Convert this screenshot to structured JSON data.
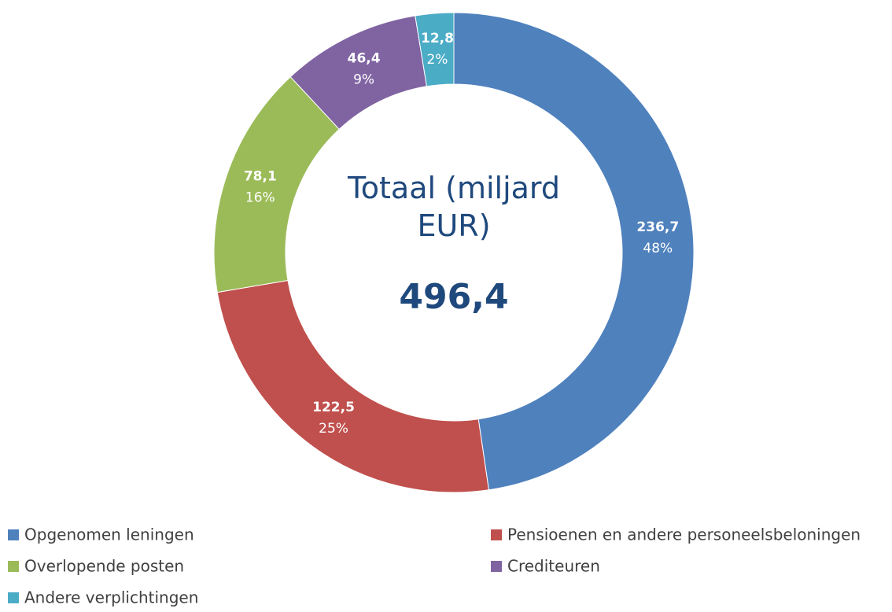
{
  "chart_data": {
    "type": "donut",
    "center_title": "Totaal (miljard EUR)",
    "total": 496.4,
    "total_label": "496,4",
    "categories": [
      "Opgenomen leningen",
      "Pensioenen en andere personeelsbeloningen",
      "Overlopende posten",
      "Crediteuren",
      "Andere verplichtingen"
    ],
    "values": [
      236.7,
      122.5,
      78.1,
      46.4,
      12.8
    ],
    "value_labels": [
      "236,7",
      "122,5",
      "78,1",
      "46,4",
      "12,8"
    ],
    "percentages": [
      48,
      25,
      16,
      9,
      2
    ],
    "percentage_labels": [
      "48%",
      "25%",
      "16%",
      "9%",
      "2%"
    ],
    "colors": [
      "#4f81bd",
      "#c0504d",
      "#9bbb59",
      "#8064a2",
      "#4bacc6"
    ],
    "legend": "bottom"
  }
}
